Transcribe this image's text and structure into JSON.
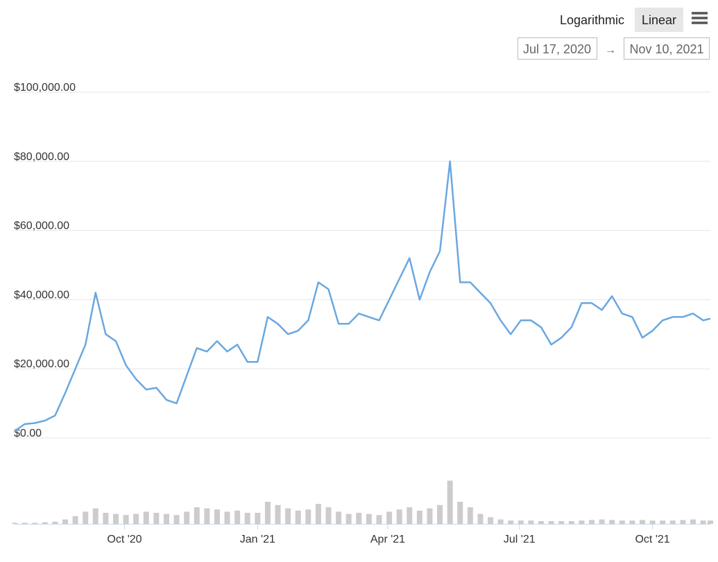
{
  "controls": {
    "scale_options": [
      "Logarithmic",
      "Linear"
    ],
    "range_from": "Jul 17, 2020",
    "range_separator": "→",
    "range_to": "Nov 10, 2021"
  },
  "chart_data": {
    "type": "line",
    "log_scale": false,
    "grid": true,
    "color": "#6aa7e0",
    "x": [
      "2020-07-17",
      "2020-07-24",
      "2020-07-31",
      "2020-08-07",
      "2020-08-14",
      "2020-08-21",
      "2020-08-28",
      "2020-09-04",
      "2020-09-11",
      "2020-09-18",
      "2020-09-25",
      "2020-10-02",
      "2020-10-09",
      "2020-10-16",
      "2020-10-23",
      "2020-10-30",
      "2020-11-06",
      "2020-11-13",
      "2020-11-20",
      "2020-11-27",
      "2020-12-04",
      "2020-12-11",
      "2020-12-18",
      "2020-12-25",
      "2021-01-01",
      "2021-01-08",
      "2021-01-15",
      "2021-01-22",
      "2021-01-29",
      "2021-02-05",
      "2021-02-12",
      "2021-02-19",
      "2021-02-26",
      "2021-03-05",
      "2021-03-12",
      "2021-03-19",
      "2021-03-26",
      "2021-04-02",
      "2021-04-09",
      "2021-04-16",
      "2021-04-23",
      "2021-04-30",
      "2021-05-07",
      "2021-05-14",
      "2021-05-21",
      "2021-05-28",
      "2021-06-04",
      "2021-06-11",
      "2021-06-18",
      "2021-06-25",
      "2021-07-02",
      "2021-07-09",
      "2021-07-16",
      "2021-07-23",
      "2021-07-30",
      "2021-08-06",
      "2021-08-13",
      "2021-08-20",
      "2021-08-27",
      "2021-09-03",
      "2021-09-10",
      "2021-09-17",
      "2021-09-24",
      "2021-10-01",
      "2021-10-08",
      "2021-10-15",
      "2021-10-22",
      "2021-10-29",
      "2021-11-05",
      "2021-11-10"
    ],
    "values": [
      2000,
      4000,
      4300,
      5000,
      6500,
      13000,
      20000,
      27000,
      42000,
      30000,
      28000,
      21000,
      17000,
      14000,
      14500,
      11000,
      10000,
      18000,
      26000,
      25000,
      28000,
      25000,
      27000,
      22000,
      22000,
      35000,
      33000,
      30000,
      31000,
      34000,
      45000,
      43000,
      33000,
      33000,
      36000,
      35000,
      34000,
      40000,
      46000,
      52000,
      40000,
      48000,
      54000,
      80000,
      45000,
      45000,
      42000,
      39000,
      34000,
      30000,
      34000,
      34000,
      32000,
      27000,
      29000,
      32000,
      39000,
      39000,
      37000,
      41000,
      36000,
      35000,
      29000,
      31000,
      34000,
      35000,
      35000,
      36000,
      34000,
      34500
    ],
    "volume": {
      "color": "#cccccc",
      "ylim": [
        0,
        100
      ],
      "values": [
        2,
        2,
        2,
        3,
        4,
        8,
        14,
        22,
        28,
        20,
        18,
        16,
        18,
        22,
        20,
        18,
        16,
        22,
        30,
        28,
        26,
        22,
        24,
        20,
        20,
        40,
        34,
        28,
        24,
        26,
        36,
        30,
        22,
        18,
        20,
        18,
        16,
        22,
        26,
        30,
        24,
        28,
        34,
        78,
        40,
        30,
        18,
        12,
        8,
        6,
        6,
        6,
        5,
        5,
        5,
        5,
        6,
        7,
        8,
        7,
        6,
        6,
        7,
        6,
        6,
        6,
        7,
        8,
        6,
        6
      ]
    },
    "xlim": [
      "2020-07-17",
      "2021-11-10"
    ],
    "xticks": [
      {
        "value": "2020-10-01",
        "label": "Oct '20"
      },
      {
        "value": "2021-01-01",
        "label": "Jan '21"
      },
      {
        "value": "2021-04-01",
        "label": "Apr '21"
      },
      {
        "value": "2021-07-01",
        "label": "Jul '21"
      },
      {
        "value": "2021-10-01",
        "label": "Oct '21"
      }
    ],
    "ylim": [
      0,
      100000
    ],
    "yticks": [
      {
        "value": 0,
        "label": "$0.00"
      },
      {
        "value": 20000,
        "label": "$20,000.00"
      },
      {
        "value": 40000,
        "label": "$40,000.00"
      },
      {
        "value": 60000,
        "label": "$60,000.00"
      },
      {
        "value": 80000,
        "label": "$80,000.00"
      },
      {
        "value": 100000,
        "label": "$100,000.00"
      }
    ]
  }
}
